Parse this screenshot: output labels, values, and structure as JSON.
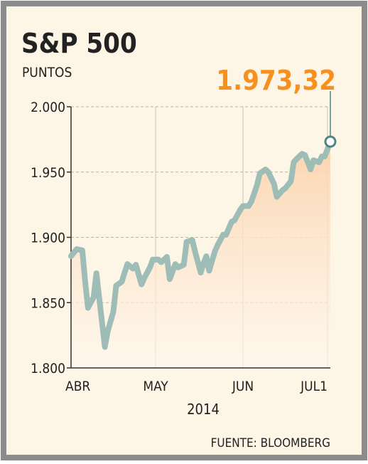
{
  "chart_data": {
    "type": "line",
    "title": "S&P 500",
    "subtitle": "PUNTOS",
    "x_label": "2014",
    "source": "FUENTE: BLOOMBERG",
    "x": [
      0,
      2,
      4,
      5,
      6,
      8,
      9,
      11,
      12,
      13,
      15,
      16,
      18,
      19,
      20,
      22,
      23,
      25,
      26,
      28,
      29,
      31,
      32,
      34,
      35,
      37,
      38,
      40,
      41,
      43,
      44,
      46,
      47,
      48,
      49,
      51,
      52,
      54,
      55,
      57,
      58,
      60,
      61,
      63,
      64,
      66,
      67,
      69,
      70,
      72,
      73,
      75,
      76,
      78,
      79,
      80,
      82,
      83,
      85,
      86,
      88,
      89,
      90,
      92
    ],
    "series": [
      {
        "name": "S&P 500",
        "color": "#9dbdb6",
        "values": [
          1885.6,
          1891,
          1890,
          1866.5,
          1846,
          1854,
          1872.5,
          1835,
          1816,
          1828,
          1843,
          1863,
          1866,
          1873,
          1879.5,
          1876,
          1879,
          1864,
          1869,
          1877,
          1883,
          1883,
          1881,
          1885,
          1868,
          1879.5,
          1877,
          1879,
          1896.5,
          1898,
          1889,
          1873,
          1880,
          1885.5,
          1874.5,
          1889,
          1894,
          1902,
          1902,
          1912,
          1913,
          1921,
          1924,
          1924,
          1927.5,
          1940,
          1949,
          1952,
          1950,
          1941,
          1931,
          1936,
          1937.5,
          1943,
          1957.5,
          1960,
          1964,
          1963,
          1952,
          1959,
          1957.5,
          1962,
          1962,
          1973.32
        ],
        "value_labels": [
          null,
          null,
          null,
          null,
          null,
          null,
          null,
          null,
          null,
          null,
          null,
          null,
          null,
          null,
          null,
          null,
          null,
          null,
          null,
          null,
          null,
          null,
          null,
          null,
          null,
          null,
          null,
          null,
          null,
          null,
          null,
          null,
          null,
          null,
          null,
          null,
          null,
          null,
          null,
          null,
          null,
          null,
          null,
          null,
          null,
          null,
          null,
          null,
          null,
          null,
          null,
          null,
          null,
          null,
          null,
          null,
          null,
          null,
          null,
          null,
          null,
          null,
          null,
          "1.973,32"
        ]
      }
    ],
    "xlim": [
      0,
      92
    ],
    "xticks": [
      {
        "value": 0,
        "label": "ABR"
      },
      {
        "value": 30,
        "label": "MAY"
      },
      {
        "value": 61,
        "label": "JUN"
      },
      {
        "value": 91,
        "label": "JUL1"
      }
    ],
    "ylim": [
      1800,
      2000
    ],
    "yticks": [
      {
        "value": 1800,
        "label": "1.800"
      },
      {
        "value": 1850,
        "label": "1.850"
      },
      {
        "value": 1900,
        "label": "1.900"
      },
      {
        "value": 1950,
        "label": "1.950"
      },
      {
        "value": 2000,
        "label": "2.000"
      }
    ],
    "grid": true,
    "label_color": "#f7901e"
  }
}
